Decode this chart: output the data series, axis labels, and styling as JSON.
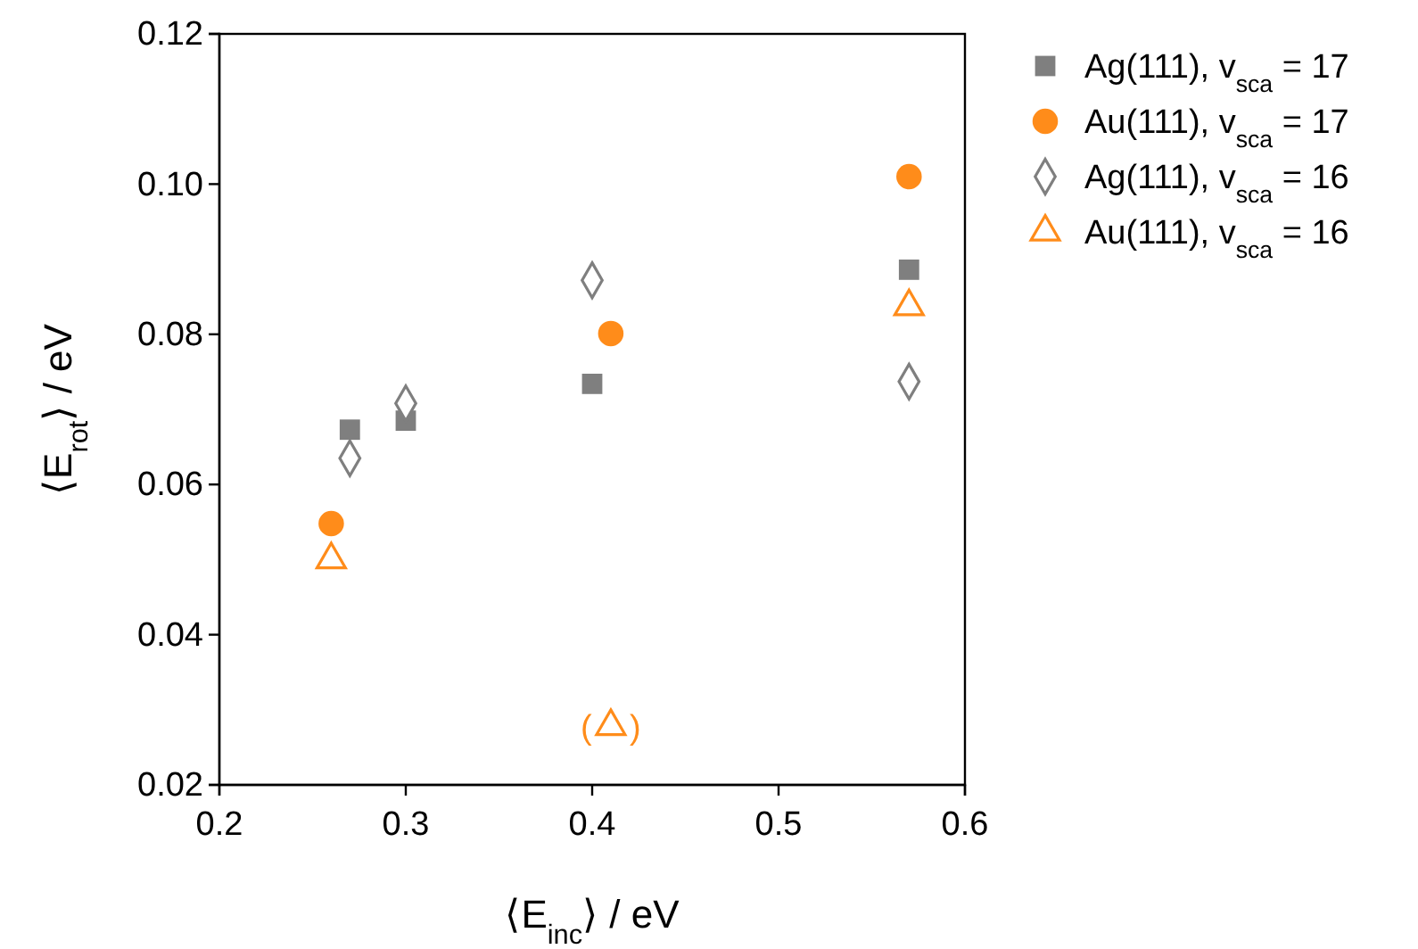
{
  "chart_data": {
    "type": "scatter",
    "xlabel": "⟨E$_{inc}$⟩ / eV",
    "ylabel": "⟨E$_{rot}$⟩ / eV",
    "xlim": [
      0.2,
      0.6
    ],
    "xticks": [
      0.2,
      0.3,
      0.4,
      0.5,
      0.6
    ],
    "ylim": [
      0.02,
      0.12
    ],
    "yticks": [
      0.02,
      0.04,
      0.06,
      0.08,
      {
        "value": 0.1,
        "label": "0.10"
      },
      0.12
    ],
    "legend": "right",
    "grid": false,
    "series": [
      {
        "name": "Ag(111),  v$_{sca}$ = 17",
        "color": "#7f7f7f",
        "marker": "square",
        "x": [
          0.27,
          0.3,
          0.4,
          0.57
        ],
        "values": [
          0.0673,
          0.0685,
          0.0734,
          0.0886
        ]
      },
      {
        "name": "Au(111),  v$_{sca}$ = 17",
        "color": "#ff8c1a",
        "marker": "circle",
        "x": [
          0.26,
          0.41,
          0.57
        ],
        "values": [
          0.0548,
          0.0801,
          0.101
        ]
      },
      {
        "name": "Ag(111),  v$_{sca}$ = 16",
        "color": "#7f7f7f",
        "marker": "diamond",
        "x": [
          0.27,
          0.3,
          0.4,
          0.57
        ],
        "values": [
          0.0635,
          0.0708,
          0.0872,
          0.0737
        ]
      },
      {
        "name": "Au(111),  v$_{sca}$ = 16",
        "color": "#ff8c1a",
        "marker": "triangle",
        "x": [
          0.26,
          0.41,
          0.57
        ],
        "values": [
          0.05,
          0.0278,
          0.0837
        ]
      }
    ],
    "annotations": [
      {
        "text": "(    )",
        "x": 0.41,
        "y": 0.0278
      }
    ]
  }
}
